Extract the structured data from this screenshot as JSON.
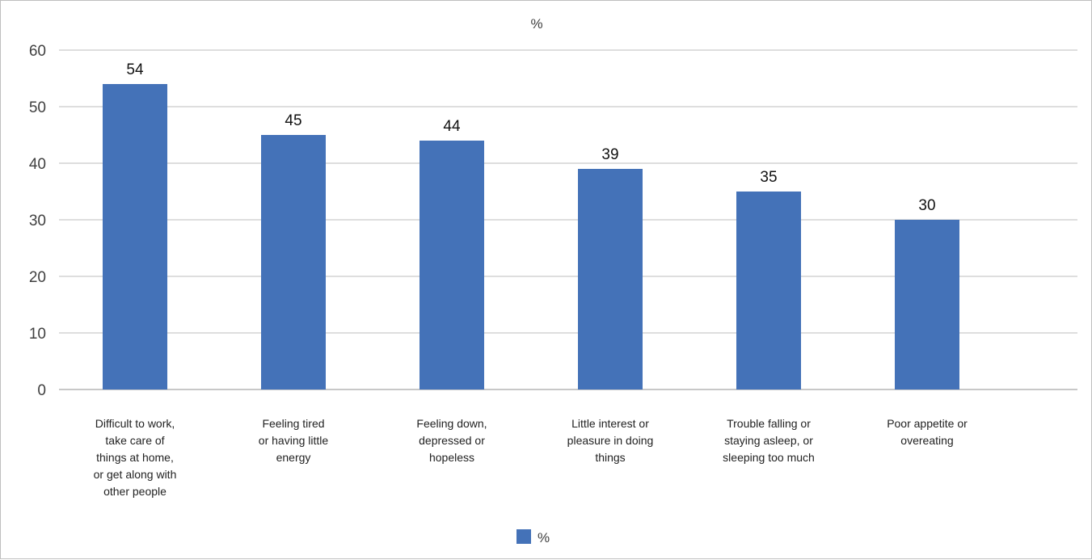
{
  "chart_data": {
    "type": "bar",
    "title": "%",
    "categories": [
      [
        "Difficult to work,",
        "take care of",
        "things at home,",
        "or get along with",
        "other people"
      ],
      [
        "Feeling tired",
        "or having little",
        "energy"
      ],
      [
        "Feeling down,",
        "depressed or",
        "hopeless"
      ],
      [
        "Little interest or",
        "pleasure in doing",
        "things"
      ],
      [
        "Trouble falling or",
        "staying asleep, or",
        "sleeping too much"
      ],
      [
        "Poor appetite or",
        "overeating"
      ]
    ],
    "series": [
      {
        "name": "%",
        "values": [
          54,
          45,
          44,
          39,
          35,
          30
        ],
        "labels": [
          "54",
          "45",
          "44",
          "39",
          "35",
          "30"
        ]
      }
    ],
    "ylim": [
      0,
      60
    ],
    "yticks": [
      0,
      10,
      20,
      30,
      40,
      50,
      60
    ],
    "grid": true,
    "legend_position": "bottom",
    "colors": {
      "bar": "#4472b8",
      "grid": "#c9c9c9",
      "axis": "#a6a6a6"
    }
  }
}
